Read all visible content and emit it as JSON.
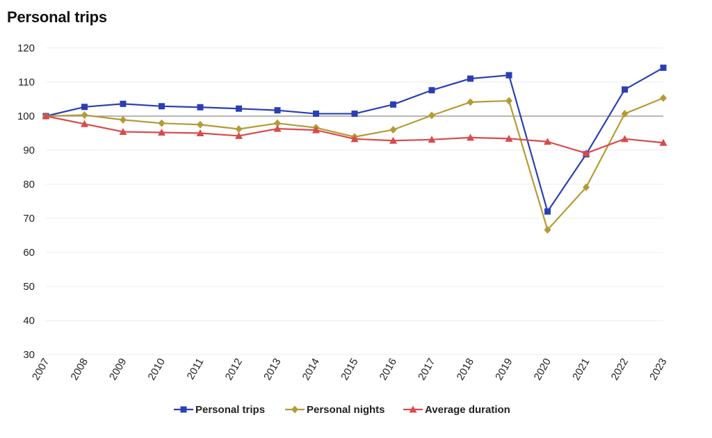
{
  "title": "Personal trips",
  "chart_data": {
    "type": "line",
    "title": "Personal trips",
    "xlabel": "",
    "ylabel": "",
    "x": [
      "2007",
      "2008",
      "2009",
      "2010",
      "2011",
      "2012",
      "2013",
      "2014",
      "2015",
      "2016",
      "2017",
      "2018",
      "2019",
      "2020",
      "2021",
      "2022",
      "2023"
    ],
    "ylim": [
      30,
      120
    ],
    "yticks": [
      30,
      40,
      50,
      60,
      70,
      80,
      90,
      100,
      110,
      120
    ],
    "reference_line": 100,
    "grid": true,
    "legend_position": "bottom",
    "series": [
      {
        "name": "Personal trips",
        "color": "#2a3fb5",
        "marker": "square",
        "values": [
          100,
          102.7,
          103.6,
          102.9,
          102.6,
          102.2,
          101.7,
          100.7,
          100.7,
          103.4,
          107.6,
          111.0,
          112.0,
          72.0,
          88.8,
          107.8,
          114.2
        ]
      },
      {
        "name": "Personal nights",
        "color": "#b59a35",
        "marker": "diamond",
        "values": [
          100,
          100.3,
          98.9,
          97.9,
          97.5,
          96.2,
          97.9,
          96.6,
          93.9,
          96.0,
          100.2,
          104.1,
          104.5,
          66.6,
          79.1,
          100.7,
          105.3
        ]
      },
      {
        "name": "Average duration",
        "color": "#d94a4a",
        "marker": "triangle",
        "values": [
          100,
          97.7,
          95.4,
          95.2,
          95.0,
          94.2,
          96.3,
          95.9,
          93.3,
          92.8,
          93.1,
          93.7,
          93.4,
          92.5,
          89.1,
          93.3,
          92.2
        ]
      }
    ]
  }
}
